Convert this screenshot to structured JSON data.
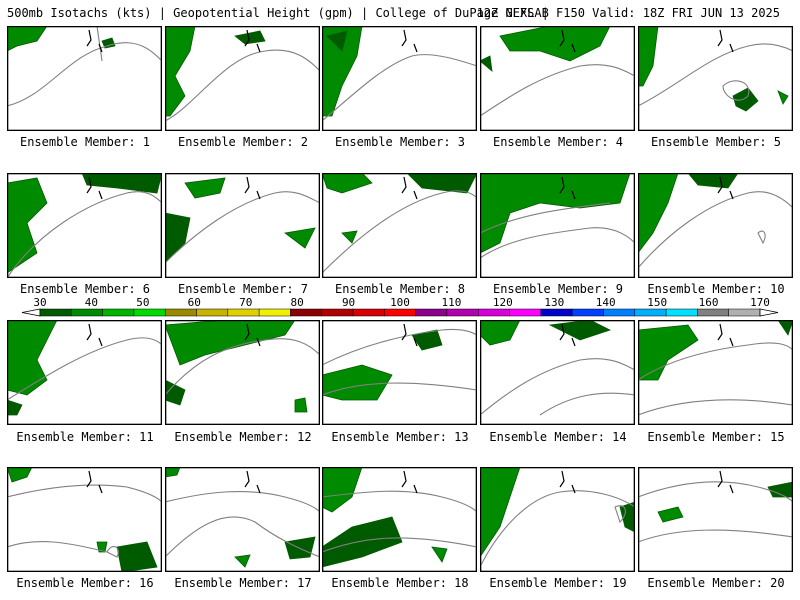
{
  "header": {
    "title_left": "500mb Isotachs (kts) | Geopotential Height (gpm) | College of DuPage NEXLAB",
    "title_right": "12Z GEFS | F150 Valid: 18Z FRI JUN 13 2025"
  },
  "colorbar": {
    "labels": [
      "30",
      "40",
      "50",
      "60",
      "70",
      "80",
      "90",
      "100",
      "110",
      "120",
      "130",
      "140",
      "150",
      "160",
      "170"
    ],
    "colors": [
      "#005a00",
      "#008a00",
      "#00b400",
      "#00dc00",
      "#9b8a00",
      "#c8b400",
      "#e0d000",
      "#f0f000",
      "#8b0000",
      "#b00000",
      "#d80000",
      "#ff0000",
      "#8b008b",
      "#b000b0",
      "#d800d8",
      "#ff00ff",
      "#0000c8",
      "#0040ff",
      "#0080ff",
      "#00b0ff",
      "#00e0ff",
      "#808080",
      "#b0b0b0"
    ]
  },
  "members": [
    {
      "caption": "Ensemble Member: 1"
    },
    {
      "caption": "Ensemble Member: 2"
    },
    {
      "caption": "Ensemble Member: 3"
    },
    {
      "caption": "Ensemble Member: 4"
    },
    {
      "caption": "Ensemble Member: 5"
    },
    {
      "caption": "Ensemble Member: 6"
    },
    {
      "caption": "Ensemble Member: 7"
    },
    {
      "caption": "Ensemble Member: 8"
    },
    {
      "caption": "Ensemble Member: 9"
    },
    {
      "caption": "Ensemble Member: 10"
    },
    {
      "caption": "Ensemble Member: 11"
    },
    {
      "caption": "Ensemble Member: 12"
    },
    {
      "caption": "Ensemble Member: 13"
    },
    {
      "caption": "Ensemble Member: 14"
    },
    {
      "caption": "Ensemble Member: 15"
    },
    {
      "caption": "Ensemble Member: 16"
    },
    {
      "caption": "Ensemble Member: 17"
    },
    {
      "caption": "Ensemble Member: 18"
    },
    {
      "caption": "Ensemble Member: 19"
    },
    {
      "caption": "Ensemble Member: 20"
    }
  ],
  "colors": {
    "contour": "#808080",
    "green_dark": "#005a00",
    "green_mid": "#008a00",
    "green_light": "#00b400",
    "olive": "#9b8a00"
  }
}
